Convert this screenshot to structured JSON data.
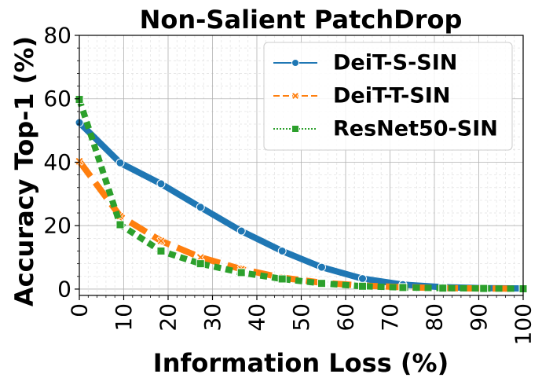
{
  "chart_data": {
    "type": "line",
    "title": "Non-Salient PatchDrop",
    "xlabel": "Information Loss (%)",
    "ylabel": "Accuracy Top-1 (%)",
    "xlim": [
      0,
      100
    ],
    "ylim": [
      -2,
      80
    ],
    "xticks": [
      0,
      10,
      20,
      30,
      40,
      50,
      60,
      70,
      80,
      90,
      100
    ],
    "yticks": [
      0,
      20,
      40,
      60,
      80
    ],
    "grid": true,
    "legend_position": "top-right",
    "x": [
      0,
      9.2,
      18.4,
      27.3,
      36.5,
      45.7,
      54.6,
      63.8,
      72.9,
      81.9,
      91.1,
      100
    ],
    "series": [
      {
        "name": "DeiT-S-SIN",
        "color": "#1f77b4",
        "style": "solid",
        "marker": "circle",
        "values": [
          52.5,
          39.8,
          33.2,
          25.8,
          18.3,
          12.0,
          6.9,
          3.3,
          1.4,
          0.6,
          0.3,
          0.2
        ]
      },
      {
        "name": "DeiT-T-SIN",
        "color": "#ff7f0e",
        "style": "dashed",
        "marker": "x",
        "values": [
          40.3,
          23.0,
          15.2,
          10.0,
          6.3,
          3.6,
          2.0,
          1.1,
          0.6,
          0.3,
          0.2,
          0.1
        ]
      },
      {
        "name": "ResNet50-SIN",
        "color": "#2ca02c",
        "style": "dotted",
        "marker": "square",
        "values": [
          59.8,
          20.3,
          12.0,
          8.0,
          5.2,
          3.2,
          1.8,
          0.9,
          0.5,
          0.3,
          0.2,
          0.1
        ]
      }
    ]
  }
}
